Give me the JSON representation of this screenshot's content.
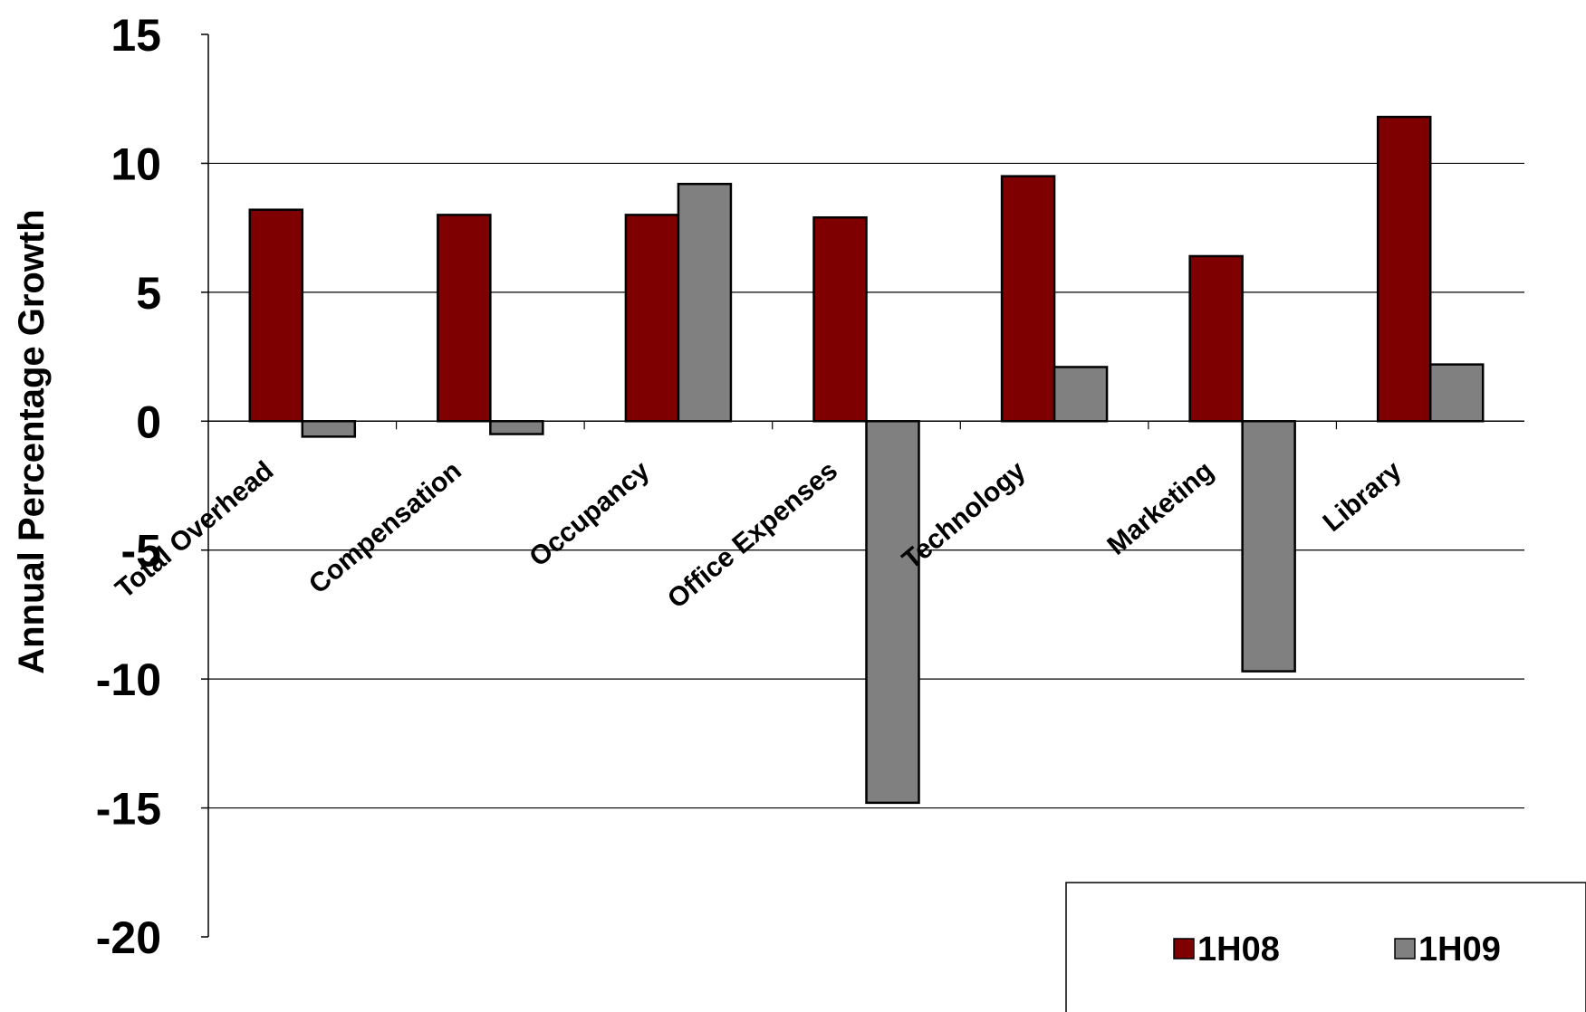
{
  "chart_data": {
    "type": "bar",
    "title": "",
    "xlabel": "",
    "ylabel": "Annual Percentage Growth",
    "ylim": [
      -20,
      15
    ],
    "yticks": [
      15,
      10,
      5,
      0,
      -5,
      -10,
      -15,
      -20
    ],
    "grid": true,
    "legend_position": "bottom-right",
    "categories": [
      "Total Overhead",
      "Compensation",
      "Occupancy",
      "Office Expenses",
      "Technology",
      "Marketing",
      "Library"
    ],
    "series": [
      {
        "name": "1H08",
        "color": "#7f0000",
        "values": [
          8.2,
          8.0,
          8.0,
          7.9,
          9.5,
          6.4,
          11.8
        ]
      },
      {
        "name": "1H09",
        "color": "#808080",
        "values": [
          -0.6,
          -0.5,
          9.2,
          -14.8,
          2.1,
          -9.7,
          2.2
        ]
      }
    ]
  }
}
